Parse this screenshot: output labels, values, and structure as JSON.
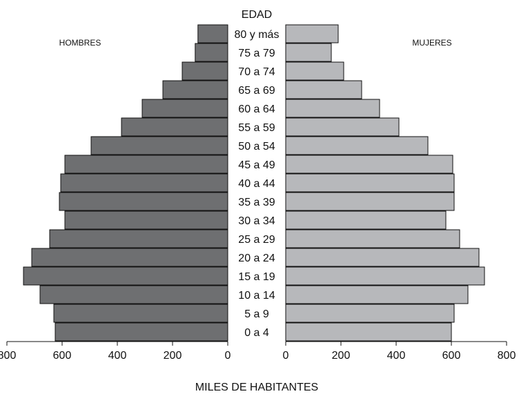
{
  "chart_data": {
    "type": "bar",
    "orientation": "horizontal",
    "subtype": "population-pyramid",
    "category_axis_title": "EDAD",
    "xlabel": "MILES DE HABITANTES",
    "categories": [
      "80 y más",
      "75 a 79",
      "70 a 74",
      "65 a 69",
      "60 a 64",
      "55 a 59",
      "50 a 54",
      "45 a 49",
      "40 a 44",
      "35 a 39",
      "30 a 34",
      "25 a 29",
      "20 a 24",
      "15 a 19",
      "10 a 14",
      "5 a 9",
      "0 a 4"
    ],
    "series": [
      {
        "name": "HOMBRES",
        "color": "#6e6f71",
        "side": "left",
        "values": [
          108,
          118,
          165,
          235,
          310,
          385,
          495,
          590,
          605,
          610,
          590,
          645,
          710,
          740,
          680,
          630,
          625
        ]
      },
      {
        "name": "MUJERES",
        "color": "#b7b8bb",
        "side": "right",
        "values": [
          190,
          165,
          210,
          275,
          340,
          410,
          515,
          605,
          610,
          610,
          580,
          630,
          700,
          720,
          660,
          610,
          600
        ]
      }
    ],
    "xlim": [
      0,
      800
    ],
    "ticks": [
      "800",
      "600",
      "400",
      "200",
      "0"
    ],
    "ticks_right": [
      "0",
      "200",
      "400",
      "600",
      "800"
    ],
    "legend": "top-left and top-right labels",
    "grid": false
  }
}
